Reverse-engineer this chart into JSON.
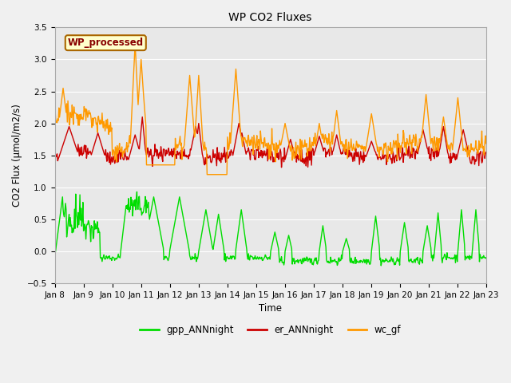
{
  "title": "WP CO2 Fluxes",
  "xlabel": "Time",
  "ylabel": "CO2 Flux (μmol/m2/s)",
  "ylim": [
    -0.5,
    3.5
  ],
  "background_color": "#f0f0f0",
  "plot_bg_color": "#e8e8e8",
  "x_tick_labels": [
    "Jan 8",
    "Jan 9",
    "Jan 10",
    "Jan 11",
    "Jan 12",
    "Jan 13",
    "Jan 14",
    "Jan 15",
    "Jan 16",
    "Jan 17",
    "Jan 18",
    "Jan 19",
    "Jan 20",
    "Jan 21",
    "Jan 22",
    "Jan 23"
  ],
  "series": {
    "gpp_ANNnight": {
      "color": "#00dd00",
      "linewidth": 1.0
    },
    "er_ANNnight": {
      "color": "#cc0000",
      "linewidth": 1.0
    },
    "wc_gf": {
      "color": "#ff9900",
      "linewidth": 1.0
    }
  },
  "annotation_text": "WP_processed",
  "annotation_color": "#880000",
  "annotation_bg": "#ffffcc",
  "annotation_border": "#aa6600",
  "grid_color": "#ffffff",
  "yticks": [
    -0.5,
    0.0,
    0.5,
    1.0,
    1.5,
    2.0,
    2.5,
    3.0,
    3.5
  ]
}
